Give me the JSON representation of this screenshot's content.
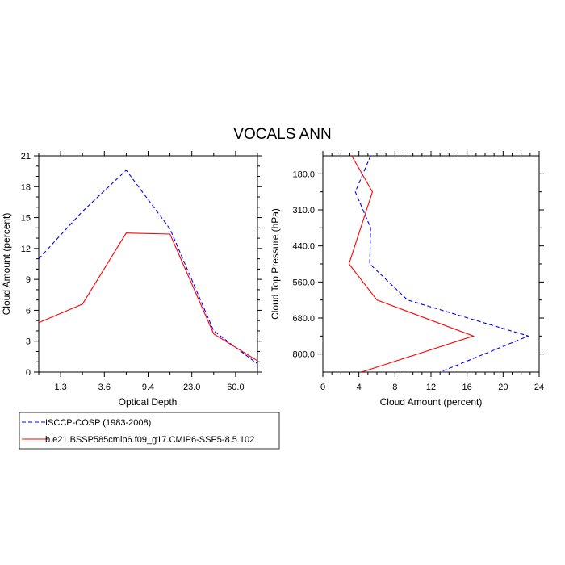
{
  "chart_data": [
    {
      "type": "line",
      "title": "VOCALS ANN",
      "xlabel": "Optical Depth",
      "ylabel": "Cloud Amount (percent)",
      "xtick_labels": [
        "1.3",
        "3.6",
        "9.4",
        "23.0",
        "60.0"
      ],
      "ylim": [
        0,
        21
      ],
      "yticks": [
        0,
        3,
        6,
        9,
        12,
        15,
        18,
        21
      ],
      "x": [
        0,
        1,
        2,
        3,
        4,
        5
      ],
      "series": [
        {
          "name": "ISCCP-COSP (1983-2008)",
          "color": "#0000ff",
          "dash": "dashed",
          "values": [
            11.0,
            15.6,
            19.6,
            13.9,
            4.0,
            0.8
          ]
        },
        {
          "name": "b.e21.BSSP585cmip6.f09_g17.CMIP6-SSP5-8.5.102",
          "color": "#ff0000",
          "dash": "solid",
          "values": [
            4.8,
            6.6,
            13.5,
            13.4,
            3.7,
            1.1
          ]
        }
      ]
    },
    {
      "type": "line",
      "xlabel": "Cloud Amount (percent)",
      "ylabel": "Cloud Top Pressure (hPa)",
      "xlim": [
        0,
        24
      ],
      "xticks": [
        0,
        4,
        8,
        12,
        16,
        20,
        24
      ],
      "ytick_labels": [
        "180.0",
        "310.0",
        "440.0",
        "560.0",
        "680.0",
        "800.0"
      ],
      "y_levels": [
        0,
        1,
        2,
        3,
        4,
        5,
        6
      ],
      "series": [
        {
          "name": "ISCCP-COSP (1983-2008)",
          "color": "#0000ff",
          "dash": "dashed",
          "values": [
            5.3,
            3.6,
            5.3,
            5.2,
            9.4,
            22.8,
            13.0
          ]
        },
        {
          "name": "b.e21.BSSP585cmip6.f09_g17.CMIP6-SSP5-8.5.102",
          "color": "#ff0000",
          "dash": "solid",
          "values": [
            3.2,
            5.5,
            4.2,
            2.9,
            6.0,
            16.7,
            4.3
          ]
        }
      ]
    }
  ],
  "legend": [
    {
      "label": "ISCCP-COSP (1983-2008)",
      "color": "#0000ff",
      "dash": "dashed"
    },
    {
      "label": "b.e21.BSSP585cmip6.f09_g17.CMIP6-SSP5-8.5.102",
      "color": "#ff0000",
      "dash": "solid"
    }
  ]
}
